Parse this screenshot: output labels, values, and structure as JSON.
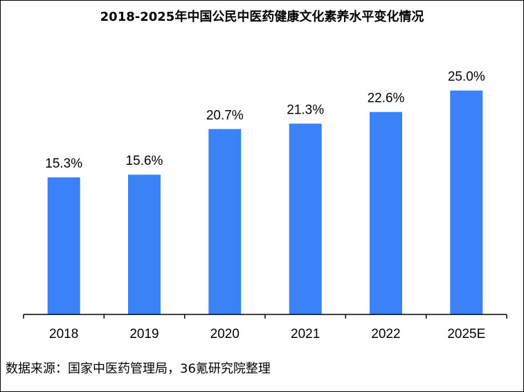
{
  "chart_data": {
    "type": "bar",
    "title": "2018-2025年中国公民中医药健康文化素养水平变化情况",
    "categories": [
      "2018",
      "2019",
      "2020",
      "2021",
      "2022",
      "2025E"
    ],
    "values": [
      15.3,
      15.6,
      20.7,
      21.3,
      22.6,
      25.0
    ],
    "data_labels": [
      "15.3%",
      "15.6%",
      "20.7%",
      "21.3%",
      "22.6%",
      "25.0%"
    ],
    "unit": "%",
    "xlabel": "",
    "ylabel": "",
    "ylim": [
      0,
      28.3
    ],
    "grid": false,
    "legend": "none",
    "bar_color": "#3b82f6"
  },
  "source_note": "数据来源：国家中医药管理局，36氪研究院整理"
}
